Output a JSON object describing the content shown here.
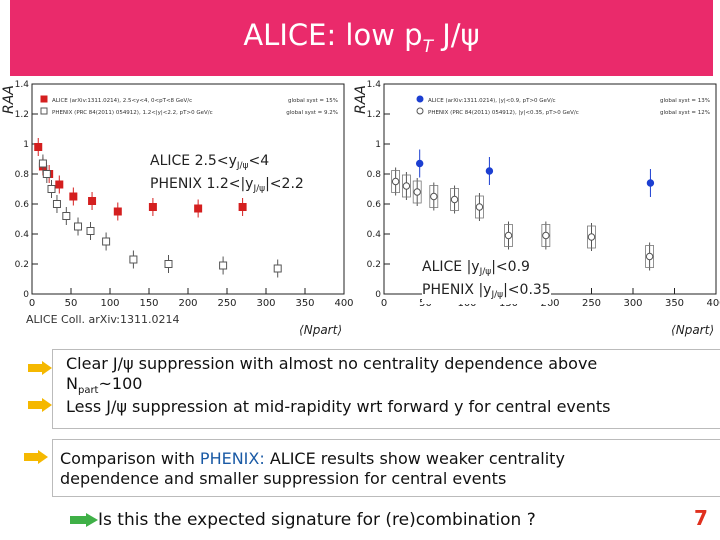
{
  "slide": {
    "title_main": "ALICE: low p",
    "title_sub": "T",
    "title_end": " J/ψ",
    "citation": "ALICE Coll. arXiv:1311.0214",
    "page_number": "7",
    "accent_color": "#ea2a6b"
  },
  "left_overlay": {
    "line1_a": "ALICE 2.5<y",
    "line1_sub": "J/ψ",
    "line1_b": "<4",
    "line2_a": "PHENIX 1.2<|y",
    "line2_sub": "J/ψ",
    "line2_b": "|<2.2"
  },
  "right_overlay": {
    "line1_a": "ALICE |y",
    "line1_sub": "J/ψ",
    "line1_b": "|<0.9",
    "line2_a": "PHENIX |y",
    "line2_sub": "J/ψ",
    "line2_b": "|<0.35"
  },
  "bullets": {
    "b1_line1": "Clear J/ψ suppression with almost no centrality dependence above",
    "b1_line2_a": "N",
    "b1_line2_sub": "part",
    "b1_line2_b": "~100",
    "b2": "Less J/ψ suppression at mid-rapidity wrt forward y for central events",
    "b3_a": "Comparison with ",
    "b3_phenix": "PHENIX:",
    "b3_b": " ALICE results show weaker centrality",
    "b3_line2": "dependence and smaller suppression for central events",
    "question": "Is this the expected signature for (re)combination ?"
  },
  "chart_data": [
    {
      "type": "scatter",
      "ylabel": "R_AA",
      "xlabel": "⟨N_part⟩",
      "xlim": [
        0,
        400
      ],
      "ylim": [
        0,
        1.4
      ],
      "x_ticks": [
        "0",
        "50",
        "100",
        "150",
        "200",
        "250",
        "300",
        "350",
        "400"
      ],
      "y_ticks": [
        "0",
        "0.2",
        "0.4",
        "0.6",
        "0.8",
        "1",
        "1.2",
        "1.4"
      ],
      "legend": [
        "ALICE (arXiv:1311.0214), 2.5<y<4, 0<pT<8 GeV/c",
        "PHENIX (PRC 84(2011) 054912), 1.2<|y|<2.2, pT>0 GeV/c"
      ],
      "global_syst": [
        "global syst = 15%",
        "global syst = 9.2%"
      ],
      "series": [
        {
          "name": "ALICE",
          "color": "#d41f1f",
          "marker": "filled-square",
          "x": [
            8,
            14,
            22,
            35,
            53,
            77,
            110,
            155,
            213,
            270
          ],
          "y": [
            0.98,
            0.85,
            0.8,
            0.73,
            0.65,
            0.62,
            0.55,
            0.58,
            0.57,
            0.58
          ]
        },
        {
          "name": "PHENIX",
          "color": "#555555",
          "marker": "open-square",
          "x": [
            14,
            19,
            25,
            32,
            44,
            59,
            75,
            95,
            130,
            175,
            245,
            315
          ],
          "y": [
            0.87,
            0.8,
            0.7,
            0.6,
            0.52,
            0.45,
            0.42,
            0.35,
            0.23,
            0.2,
            0.19,
            0.17
          ]
        }
      ]
    },
    {
      "type": "scatter",
      "ylabel": "R_AA",
      "xlabel": "⟨N_part⟩",
      "xlim": [
        0,
        400
      ],
      "ylim": [
        0,
        1.4
      ],
      "x_ticks": [
        "0",
        "50",
        "100",
        "150",
        "200",
        "250",
        "300",
        "350",
        "400"
      ],
      "y_ticks": [
        "0",
        "0.2",
        "0.4",
        "0.6",
        "0.8",
        "1",
        "1.2",
        "1.4"
      ],
      "legend": [
        "ALICE (arXiv:1311.0214), |y|<0.9, pT>0 GeV/c",
        "PHENIX (PRC 84(2011) 054912), |y|<0.35, pT>0 GeV/c"
      ],
      "global_syst": [
        "global syst = 13%",
        "global syst = 12%"
      ],
      "series": [
        {
          "name": "ALICE",
          "color": "#1c3fd1",
          "marker": "filled-circle",
          "x": [
            43,
            127,
            321
          ],
          "y": [
            0.87,
            0.82,
            0.74
          ]
        },
        {
          "name": "PHENIX",
          "color": "#555555",
          "marker": "open-circle",
          "x": [
            14,
            27,
            40,
            60,
            85,
            115,
            150,
            195,
            250,
            320
          ],
          "y": [
            0.75,
            0.72,
            0.68,
            0.65,
            0.63,
            0.58,
            0.39,
            0.39,
            0.38,
            0.25
          ]
        }
      ]
    }
  ]
}
